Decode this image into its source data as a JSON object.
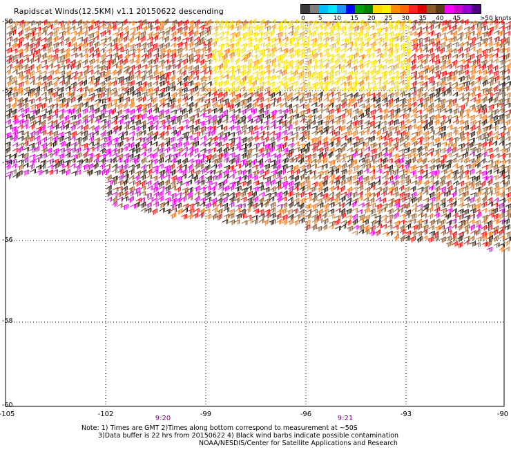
{
  "title": "Rapidscat Winds(12.5KM) v1.1 20150622 descending",
  "legend": {
    "colors": [
      "#3a3a3a",
      "#808080",
      "#00bfff",
      "#00e5ff",
      "#1e90ff",
      "#0000ff",
      "#00a000",
      "#008000",
      "#ffd700",
      "#ffee00",
      "#ff8c00",
      "#ff6600",
      "#ff2020",
      "#e00000",
      "#8b5a2b",
      "#5a3a1a",
      "#ff00ff",
      "#cc00cc",
      "#9400d3",
      "#4b0082"
    ],
    "ticks": [
      "0",
      "5",
      "10",
      "15",
      "20",
      "25",
      "30",
      "35",
      "40",
      "45"
    ],
    "unit_label": ">50 knots"
  },
  "lat_labels": [
    "-50",
    "-52",
    "-54",
    "-56",
    "-58",
    "-60"
  ],
  "lon_labels": [
    "-105",
    "-102",
    "-99",
    "-96",
    "-93",
    "-90"
  ],
  "time_labels": [
    "9:20",
    "9:21"
  ],
  "notes": [
    "Note: 1) Times are GMT 2)Times along bottom correspond to measurement at ~50S",
    "3)Data buffer is 22 hrs from 20150622 4) Black wind barbs indicate possible contamination",
    "NOAA/NESDIS/Center for Satellite Applications and Research"
  ],
  "barb_colors": {
    "orange": "#e87a1e",
    "red": "#e01010",
    "brown": "#8b5a2b",
    "dark": "#2b1a0a",
    "magenta": "#e000e0",
    "yellow": "#f5e000",
    "lightorange": "#f0a020"
  }
}
